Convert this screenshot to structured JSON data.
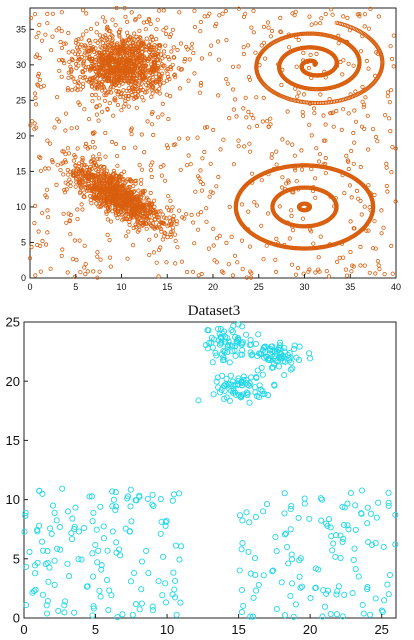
{
  "chart_data": [
    {
      "type": "scatter",
      "title": "",
      "xlabel": "",
      "ylabel": "",
      "xlim": [
        0,
        40
      ],
      "ylim": [
        0,
        38
      ],
      "xticks": [
        "0",
        "5",
        "10",
        "15",
        "20",
        "25",
        "30",
        "35",
        "40"
      ],
      "yticks": [
        "0",
        "5",
        "10",
        "15",
        "20",
        "25",
        "30",
        "35"
      ],
      "grid": false,
      "marker": "open-circle",
      "colors": {
        "points": "#d95f0e",
        "spiral": "#c85a10"
      },
      "clusters": [
        {
          "shape": "gaussian-blob",
          "center": [
            10,
            30
          ],
          "spread": [
            2.6,
            2.1
          ],
          "count": 950
        },
        {
          "shape": "elongated-blob",
          "from": [
            4,
            16
          ],
          "to": [
            15,
            7
          ],
          "width": 1.3,
          "count": 900
        },
        {
          "shape": "spiral",
          "center": [
            31,
            30
          ],
          "max_radius": 8,
          "turns": 3.2
        },
        {
          "shape": "concentric-rings",
          "center": [
            30,
            10
          ],
          "radii": [
            0.6,
            3.5,
            7.5
          ]
        },
        {
          "shape": "uniform-noise",
          "x_range": [
            0,
            40
          ],
          "y_range": [
            0,
            38
          ],
          "count": 700
        }
      ]
    },
    {
      "type": "scatter",
      "title": "Dataset3",
      "xlabel": "",
      "ylabel": "",
      "xlim": [
        0,
        26
      ],
      "ylim": [
        0,
        25
      ],
      "xticks": [
        "0",
        "5",
        "10",
        "15",
        "20",
        "25"
      ],
      "yticks": [
        "0",
        "5",
        "10",
        "15",
        "20",
        "25"
      ],
      "grid": false,
      "marker": "open-circle",
      "colors": {
        "points": "#20d8e8"
      },
      "clusters": [
        {
          "shape": "gaussian-blob",
          "center": [
            14.2,
            23.2
          ],
          "spread": [
            0.9,
            0.7
          ],
          "count": 70
        },
        {
          "shape": "gaussian-blob",
          "center": [
            17.6,
            22.2
          ],
          "spread": [
            1.0,
            0.6
          ],
          "count": 70
        },
        {
          "shape": "gaussian-blob",
          "center": [
            15.2,
            19.4
          ],
          "spread": [
            1.0,
            0.6
          ],
          "count": 70
        },
        {
          "shape": "uniform-noise",
          "x_range": [
            0,
            11
          ],
          "y_range": [
            0,
            11
          ],
          "count": 150
        },
        {
          "shape": "uniform-noise",
          "x_range": [
            15,
            26
          ],
          "y_range": [
            0,
            11
          ],
          "count": 130
        }
      ]
    }
  ]
}
